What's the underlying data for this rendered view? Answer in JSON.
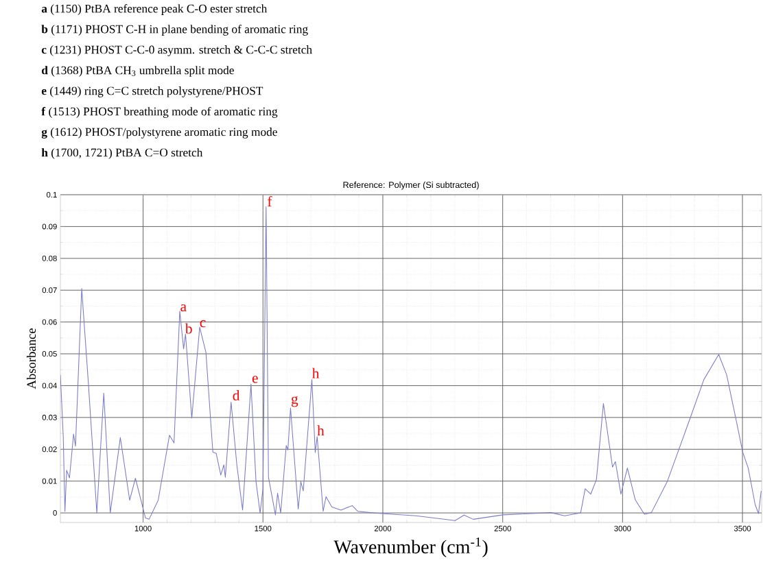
{
  "chart_data": {
    "type": "line",
    "title": "Reference: Polymer (Si subtracted)",
    "xlabel": "Wavenumber (cm$^{-1}$)",
    "ylabel": "Absorbance",
    "xlim": [
      655,
      3580
    ],
    "ylim": [
      -0.003,
      0.1
    ],
    "xticks": [
      1000,
      1500,
      2000,
      2500,
      3000,
      3500
    ],
    "yticks": [
      0,
      0.01,
      0.02,
      0.03,
      0.04,
      0.05,
      0.06,
      0.07,
      0.08,
      0.09,
      0.1
    ],
    "grid": true,
    "marker": "none",
    "line_style": "solid",
    "series": [
      {
        "color": "#7b7bc8",
        "x": [
          655,
          667,
          674,
          681,
          693,
          710,
          718,
          744,
          772,
          807,
          836,
          863,
          905,
          944,
          968,
          1010,
          1025,
          1063,
          1110,
          1129,
          1153,
          1169,
          1177,
          1203,
          1236,
          1262,
          1291,
          1305,
          1324,
          1337,
          1343,
          1367,
          1391,
          1415,
          1450,
          1471,
          1488,
          1500,
          1513,
          1523,
          1552,
          1561,
          1574,
          1597,
          1604,
          1615,
          1647,
          1658,
          1668,
          1704,
          1718,
          1726,
          1751,
          1763,
          1787,
          1825,
          1872,
          1896,
          1948,
          1996,
          2139,
          2301,
          2339,
          2377,
          2501,
          2701,
          2758,
          2825,
          2844,
          2867,
          2891,
          2920,
          2958,
          2970,
          2993,
          3020,
          3053,
          3091,
          3120,
          3186,
          3282,
          3339,
          3401,
          3434,
          3472,
          3501,
          3524,
          3553,
          3567,
          3578
        ],
        "values": [
          0.0434,
          0.024,
          0.0005,
          0.0134,
          0.011,
          0.0248,
          0.021,
          0.0705,
          0.0405,
          0,
          0.0376,
          0,
          0.0237,
          0.004,
          0.0109,
          -0.0016,
          -0.002,
          0.004,
          0.0244,
          0.022,
          0.0634,
          0.0516,
          0.0562,
          0.0298,
          0.0584,
          0.0505,
          0.0191,
          0.0187,
          0.0119,
          0.0151,
          0.0112,
          0.0348,
          0.0151,
          0.0009,
          0.0405,
          0.0098,
          0,
          0.0076,
          0.0962,
          0.0112,
          -0.0006,
          0.0062,
          0,
          0.0212,
          0.0198,
          0.033,
          0.0012,
          0.0098,
          0.0069,
          0.0419,
          0.019,
          0.024,
          0.0005,
          0.0051,
          0.0019,
          0.0009,
          0.0023,
          0.0005,
          0.0001,
          -0.0002,
          -0.0009,
          -0.0024,
          -0.0007,
          -0.002,
          -0.0006,
          0.0001,
          -0.0009,
          0,
          0.0076,
          0.0059,
          0.0105,
          0.0344,
          0.0144,
          0.0161,
          0.0059,
          0.0141,
          0.0041,
          -0.0004,
          0.0001,
          0.0098,
          0.0298,
          0.0419,
          0.0498,
          0.0434,
          0.0298,
          0.0191,
          0.0141,
          0.0026,
          -0.0002,
          0.0069
        ]
      }
    ],
    "annotations": [
      "**a**  (1150) PtBA reference peak C-O ester stretch",
      "**b**  (1171) PHOST C-H in plane bending of aromatic ring",
      "**c**  (1231) PHOST C-C-0 asymm. stretch & C-C-C stretch",
      "**d**  (1368) PtBA CH$_{3}$ umbrella split mode",
      "**e**  (1449) ring C=C stretch polystyrene/PHOST",
      "**f**  (1513) PHOST breathing mode of aromatic ring",
      "**g**  (1612) PHOST/polystyrene aromatic ring mode",
      "**h**  (1700, 1721) PtBA C=O stretch",
      {
        "text": "a",
        "x": 1150,
        "y": 0.063
      },
      {
        "text": "b",
        "x": 1171,
        "y": 0.056
      },
      {
        "text": "c",
        "x": 1231,
        "y": 0.058
      },
      {
        "text": "d",
        "x": 1368,
        "y": 0.035
      },
      {
        "text": "e",
        "x": 1449,
        "y": 0.0405
      },
      {
        "text": "f",
        "x": 1513,
        "y": 0.096
      },
      {
        "text": "g",
        "x": 1612,
        "y": 0.033
      },
      {
        "text": "h",
        "x": 1700,
        "y": 0.042
      },
      {
        "text": "h",
        "x": 1721,
        "y": 0.024
      }
    ]
  }
}
